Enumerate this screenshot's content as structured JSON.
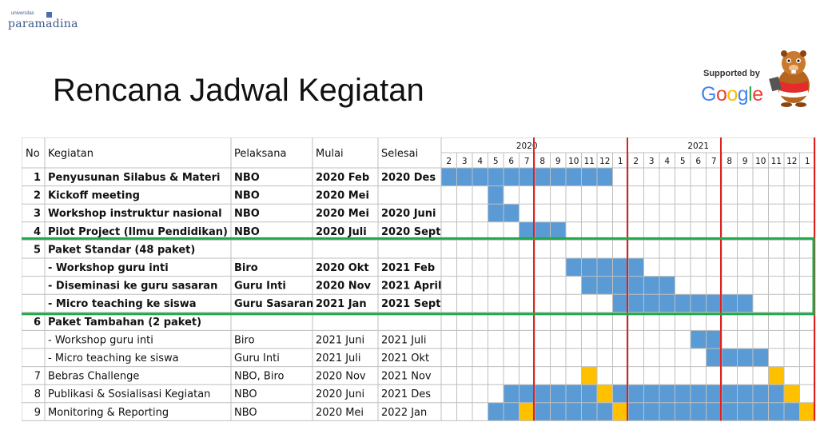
{
  "logo": {
    "small": "universitas",
    "big": "paramadina"
  },
  "title": "Rencana Jadwal Kegiatan",
  "sponsor": {
    "supported_by": "Supported by",
    "brand": "Google",
    "mascot_icon": "beaver-mascot-icon"
  },
  "colors": {
    "bar": "#5b9bd5",
    "milestone": "#ffc000",
    "marker": "#e02020",
    "highlight": "#1fa84a"
  },
  "table": {
    "headers": {
      "no": "No",
      "activity": "Kegiatan",
      "executor": "Pelaksana",
      "start": "Mulai",
      "end": "Selesai"
    },
    "years": [
      "2020",
      "2021"
    ],
    "months": [
      "2",
      "3",
      "4",
      "5",
      "6",
      "7",
      "8",
      "9",
      "10",
      "11",
      "12",
      "1",
      "2",
      "3",
      "4",
      "5",
      "6",
      "7",
      "8",
      "9",
      "10",
      "11",
      "12",
      "1"
    ],
    "rows": [
      {
        "no": "1",
        "activity": "Penyusunan Silabus & Materi",
        "executor": "NBO",
        "start": "2020 Feb",
        "end": "2020 Des",
        "bold": true
      },
      {
        "no": "2",
        "activity": "Kickoff meeting",
        "executor": "NBO",
        "start": "2020 Mei",
        "end": "",
        "bold": true
      },
      {
        "no": "3",
        "activity": "Workshop instruktur nasional",
        "executor": "NBO",
        "start": "2020 Mei",
        "end": "2020 Juni",
        "bold": true
      },
      {
        "no": "4",
        "activity": "Pilot Project (Ilmu Pendidikan)",
        "executor": "NBO",
        "start": "2020 Juli",
        "end": "2020 Sept",
        "bold": true
      },
      {
        "no": "5",
        "activity": "Paket Standar (48 paket)",
        "executor": "",
        "start": "",
        "end": "",
        "bold": true
      },
      {
        "no": "",
        "activity": "- Workshop guru inti",
        "executor": "Biro",
        "start": "2020 Okt",
        "end": "2021 Feb",
        "bold": true
      },
      {
        "no": "",
        "activity": "- Diseminasi ke guru sasaran",
        "executor": "Guru Inti",
        "start": "2020 Nov",
        "end": "2021 April",
        "bold": true
      },
      {
        "no": "",
        "activity": "- Micro teaching ke siswa",
        "executor": "Guru Sasaran",
        "start": "2021 Jan",
        "end": "2021 Sept",
        "bold": true
      },
      {
        "no": "6",
        "activity": "Paket Tambahan (2 paket)",
        "executor": "",
        "start": "",
        "end": "",
        "bold": true
      },
      {
        "no": "",
        "activity": "- Workshop guru inti",
        "executor": "Biro",
        "start": "2021 Juni",
        "end": "2021 Juli",
        "bold": false
      },
      {
        "no": "",
        "activity": "- Micro teaching ke siswa",
        "executor": "Guru Inti",
        "start": "2021 Juli",
        "end": "2021 Okt",
        "bold": false
      },
      {
        "no": "7",
        "activity": "Bebras Challenge",
        "executor": "NBO, Biro",
        "start": "2020 Nov",
        "end": "2021 Nov",
        "bold": false
      },
      {
        "no": "8",
        "activity": "Publikasi & Sosialisasi Kegiatan",
        "executor": "NBO",
        "start": "2020 Juni",
        "end": "2021 Des",
        "bold": false
      },
      {
        "no": "9",
        "activity": "Monitoring & Reporting",
        "executor": "NBO",
        "start": "2020 Mei",
        "end": "2022 Jan",
        "bold": false
      }
    ],
    "bars": [
      {
        "row": 0,
        "from": 0,
        "to": 10,
        "type": "bar"
      },
      {
        "row": 1,
        "from": 3,
        "to": 3,
        "type": "bar"
      },
      {
        "row": 2,
        "from": 3,
        "to": 4,
        "type": "bar"
      },
      {
        "row": 3,
        "from": 5,
        "to": 7,
        "type": "bar"
      },
      {
        "row": 5,
        "from": 8,
        "to": 12,
        "type": "bar"
      },
      {
        "row": 6,
        "from": 9,
        "to": 14,
        "type": "bar"
      },
      {
        "row": 7,
        "from": 11,
        "to": 19,
        "type": "bar"
      },
      {
        "row": 9,
        "from": 16,
        "to": 17,
        "type": "bar"
      },
      {
        "row": 10,
        "from": 17,
        "to": 20,
        "type": "bar"
      },
      {
        "row": 11,
        "from": 9,
        "to": 9,
        "type": "milestone"
      },
      {
        "row": 11,
        "from": 21,
        "to": 21,
        "type": "milestone"
      },
      {
        "row": 12,
        "from": 4,
        "to": 9,
        "type": "bar"
      },
      {
        "row": 12,
        "from": 10,
        "to": 10,
        "type": "milestone"
      },
      {
        "row": 12,
        "from": 11,
        "to": 21,
        "type": "bar"
      },
      {
        "row": 12,
        "from": 22,
        "to": 22,
        "type": "milestone"
      },
      {
        "row": 13,
        "from": 3,
        "to": 4,
        "type": "bar"
      },
      {
        "row": 13,
        "from": 5,
        "to": 5,
        "type": "milestone"
      },
      {
        "row": 13,
        "from": 6,
        "to": 10,
        "type": "bar"
      },
      {
        "row": 13,
        "from": 11,
        "to": 11,
        "type": "milestone"
      },
      {
        "row": 13,
        "from": 12,
        "to": 22,
        "type": "bar"
      },
      {
        "row": 13,
        "from": 23,
        "to": 23,
        "type": "milestone"
      }
    ],
    "markers": [
      5,
      11,
      17,
      23
    ],
    "highlight_rows": [
      4,
      7
    ]
  }
}
